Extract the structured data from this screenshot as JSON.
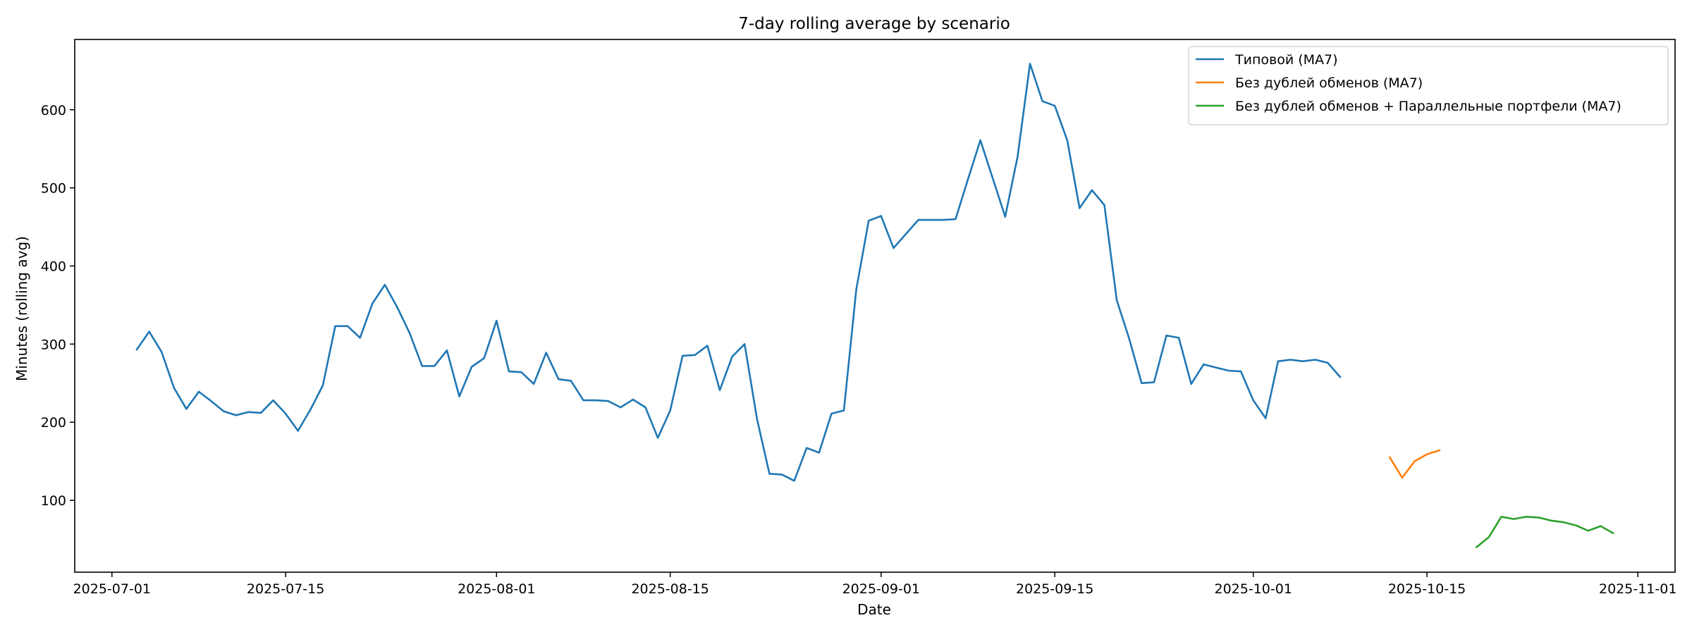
{
  "chart_data": {
    "type": "line",
    "title": "7-day rolling average by scenario",
    "xlabel": "Date",
    "ylabel": "Minutes (rolling avg)",
    "xlim": [
      "2025-06-28",
      "2025-11-04"
    ],
    "ylim": [
      8,
      690
    ],
    "x_ticks": [
      "2025-07-01",
      "2025-07-15",
      "2025-08-01",
      "2025-08-15",
      "2025-09-01",
      "2025-09-15",
      "2025-10-01",
      "2025-10-15",
      "2025-11-01"
    ],
    "y_ticks": [
      100,
      200,
      300,
      400,
      500,
      600
    ],
    "grid": false,
    "legend_position": "top-right",
    "series": [
      {
        "name": "Типовой (MA7)",
        "color": "#1f77b4",
        "points": [
          [
            "2025-07-03",
            293
          ],
          [
            "2025-07-04",
            316
          ],
          [
            "2025-07-05",
            290
          ],
          [
            "2025-07-06",
            244
          ],
          [
            "2025-07-07",
            217
          ],
          [
            "2025-07-08",
            239
          ],
          [
            "2025-07-09",
            227
          ],
          [
            "2025-07-10",
            214
          ],
          [
            "2025-07-11",
            209
          ],
          [
            "2025-07-12",
            213
          ],
          [
            "2025-07-13",
            212
          ],
          [
            "2025-07-14",
            228
          ],
          [
            "2025-07-15",
            211
          ],
          [
            "2025-07-16",
            189
          ],
          [
            "2025-07-17",
            216
          ],
          [
            "2025-07-18",
            247
          ],
          [
            "2025-07-19",
            323
          ],
          [
            "2025-07-20",
            323
          ],
          [
            "2025-07-21",
            308
          ],
          [
            "2025-07-22",
            352
          ],
          [
            "2025-07-23",
            376
          ],
          [
            "2025-07-24",
            347
          ],
          [
            "2025-07-25",
            314
          ],
          [
            "2025-07-26",
            272
          ],
          [
            "2025-07-27",
            272
          ],
          [
            "2025-07-28",
            292
          ],
          [
            "2025-07-29",
            233
          ],
          [
            "2025-07-30",
            271
          ],
          [
            "2025-07-31",
            282
          ],
          [
            "2025-08-01",
            330
          ],
          [
            "2025-08-02",
            265
          ],
          [
            "2025-08-03",
            264
          ],
          [
            "2025-08-04",
            249
          ],
          [
            "2025-08-05",
            289
          ],
          [
            "2025-08-06",
            255
          ],
          [
            "2025-08-07",
            253
          ],
          [
            "2025-08-08",
            228
          ],
          [
            "2025-08-09",
            228
          ],
          [
            "2025-08-10",
            227
          ],
          [
            "2025-08-11",
            219
          ],
          [
            "2025-08-12",
            229
          ],
          [
            "2025-08-13",
            219
          ],
          [
            "2025-08-14",
            180
          ],
          [
            "2025-08-15",
            215
          ],
          [
            "2025-08-16",
            285
          ],
          [
            "2025-08-17",
            286
          ],
          [
            "2025-08-18",
            298
          ],
          [
            "2025-08-19",
            241
          ],
          [
            "2025-08-20",
            284
          ],
          [
            "2025-08-21",
            300
          ],
          [
            "2025-08-22",
            204
          ],
          [
            "2025-08-23",
            134
          ],
          [
            "2025-08-24",
            133
          ],
          [
            "2025-08-25",
            125
          ],
          [
            "2025-08-26",
            167
          ],
          [
            "2025-08-27",
            161
          ],
          [
            "2025-08-28",
            211
          ],
          [
            "2025-08-29",
            215
          ],
          [
            "2025-08-30",
            370
          ],
          [
            "2025-08-31",
            458
          ],
          [
            "2025-09-01",
            464
          ],
          [
            "2025-09-02",
            423
          ],
          [
            "2025-09-03",
            441
          ],
          [
            "2025-09-04",
            459
          ],
          [
            "2025-09-05",
            459
          ],
          [
            "2025-09-06",
            459
          ],
          [
            "2025-09-07",
            460
          ],
          [
            "2025-09-08",
            511
          ],
          [
            "2025-09-09",
            561
          ],
          [
            "2025-09-10",
            512
          ],
          [
            "2025-09-11",
            463
          ],
          [
            "2025-09-12",
            540
          ],
          [
            "2025-09-13",
            659
          ],
          [
            "2025-09-14",
            611
          ],
          [
            "2025-09-15",
            605
          ],
          [
            "2025-09-16",
            561
          ],
          [
            "2025-09-17",
            474
          ],
          [
            "2025-09-18",
            497
          ],
          [
            "2025-09-19",
            478
          ],
          [
            "2025-09-20",
            356
          ],
          [
            "2025-09-21",
            307
          ],
          [
            "2025-09-22",
            250
          ],
          [
            "2025-09-23",
            251
          ],
          [
            "2025-09-24",
            311
          ],
          [
            "2025-09-25",
            308
          ],
          [
            "2025-09-26",
            249
          ],
          [
            "2025-09-27",
            274
          ],
          [
            "2025-09-28",
            270
          ],
          [
            "2025-09-29",
            266
          ],
          [
            "2025-09-30",
            265
          ],
          [
            "2025-10-01",
            228
          ],
          [
            "2025-10-02",
            205
          ],
          [
            "2025-10-03",
            278
          ],
          [
            "2025-10-04",
            280
          ],
          [
            "2025-10-05",
            278
          ],
          [
            "2025-10-06",
            280
          ],
          [
            "2025-10-07",
            276
          ],
          [
            "2025-10-08",
            258
          ]
        ]
      },
      {
        "name": "Без дублей обменов (MA7)",
        "color": "#ff7f0e",
        "points": [
          [
            "2025-10-12",
            155
          ],
          [
            "2025-10-13",
            129
          ],
          [
            "2025-10-14",
            150
          ],
          [
            "2025-10-15",
            159
          ],
          [
            "2025-10-16",
            164
          ]
        ]
      },
      {
        "name": "Без дублей обменов + Параллельные портфели (MA7)",
        "color": "#2ca02c",
        "points": [
          [
            "2025-10-19",
            40
          ],
          [
            "2025-10-20",
            53
          ],
          [
            "2025-10-21",
            79
          ],
          [
            "2025-10-22",
            76
          ],
          [
            "2025-10-23",
            79
          ],
          [
            "2025-10-24",
            78
          ],
          [
            "2025-10-25",
            74
          ],
          [
            "2025-10-26",
            72
          ],
          [
            "2025-10-27",
            68
          ],
          [
            "2025-10-28",
            61
          ],
          [
            "2025-10-29",
            67
          ],
          [
            "2025-10-30",
            58
          ]
        ]
      }
    ]
  }
}
